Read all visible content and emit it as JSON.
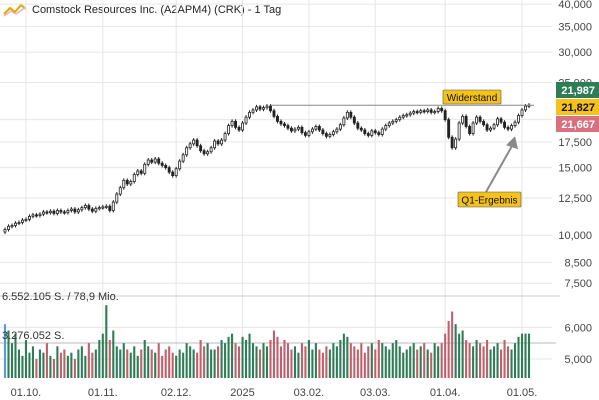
{
  "title": "Comstock Resources Inc. (A2APM4) (CRK) - 1 Tag",
  "colors": {
    "up": "#2e7d57",
    "down": "#c0606c",
    "grid": "#e6e6e6",
    "axis_text": "#444444",
    "annotation_bg": "#f4c21a",
    "tag_high": "#2e7d57",
    "tag_last": "#f4c21a",
    "tag_low": "#d9707d",
    "volume_first": "#5b9bd5"
  },
  "annotations": {
    "resistance_label": "Widerstand",
    "earnings_label": "Q1-Ergebnis"
  },
  "price_tags": {
    "high": "21,987",
    "last": "21,827",
    "low": "21,667"
  },
  "volume_labels": {
    "top": "6.552.105 S. / 78,9 Mio.",
    "mid": "3.276.052 S."
  },
  "chart_data": {
    "type": "candlestick",
    "y_scale": "log",
    "ylim": [
      7.2,
      41
    ],
    "y_ticks": [
      {
        "value": 40,
        "label": "40,000"
      },
      {
        "value": 35,
        "label": "35,000"
      },
      {
        "value": 30,
        "label": "30,000"
      },
      {
        "value": 25,
        "label": "25,000"
      },
      {
        "value": 20,
        "label": "20,000"
      },
      {
        "value": 17.5,
        "label": "17,500"
      },
      {
        "value": 15,
        "label": "15,000"
      },
      {
        "value": 12.5,
        "label": "12,500"
      },
      {
        "value": 10,
        "label": "10,000"
      },
      {
        "value": 8.5,
        "label": "8,500"
      },
      {
        "value": 7.5,
        "label": "7,500"
      }
    ],
    "volume_ticks": [
      {
        "value": 6000000,
        "label": "6,000"
      },
      {
        "value": 5000000,
        "label": "5,000"
      }
    ],
    "x_ticks": [
      "01.10.",
      "01.11.",
      "02.12.",
      "2025",
      "03.02.",
      "03.03.",
      "01.04.",
      "01.05."
    ],
    "x_tick_index": [
      6,
      28,
      49,
      68,
      87,
      106,
      126,
      148
    ],
    "resistance_level": 21.8,
    "resistance_range": [
      76,
      153
    ],
    "earnings_index": 146,
    "close": [
      10.35,
      10.55,
      10.6,
      10.75,
      10.8,
      10.95,
      11.0,
      11.2,
      11.3,
      11.25,
      11.35,
      11.5,
      11.45,
      11.55,
      11.4,
      11.6,
      11.5,
      11.45,
      11.6,
      11.7,
      11.5,
      11.65,
      11.8,
      11.95,
      11.7,
      11.55,
      11.75,
      11.8,
      11.85,
      11.9,
      11.6,
      12.2,
      12.8,
      13.3,
      13.9,
      13.6,
      13.8,
      14.4,
      14.7,
      14.5,
      15.3,
      15.7,
      15.5,
      15.8,
      15.4,
      15.2,
      15.0,
      14.6,
      14.3,
      14.9,
      15.6,
      16.2,
      16.9,
      17.3,
      17.7,
      17.1,
      16.6,
      16.3,
      16.5,
      16.9,
      17.6,
      17.3,
      17.7,
      18.4,
      19.3,
      19.8,
      19.1,
      18.8,
      19.6,
      20.3,
      20.9,
      21.2,
      21.6,
      21.3,
      21.5,
      21.7,
      21.1,
      20.4,
      19.8,
      19.5,
      19.3,
      19.0,
      18.7,
      18.9,
      19.1,
      18.5,
      18.2,
      18.6,
      18.9,
      19.2,
      18.8,
      18.4,
      18.1,
      18.3,
      18.6,
      18.9,
      19.4,
      20.2,
      20.9,
      20.3,
      19.6,
      19.0,
      18.8,
      18.4,
      18.2,
      18.7,
      18.5,
      18.3,
      18.9,
      19.3,
      19.6,
      19.8,
      20.0,
      20.3,
      20.5,
      20.6,
      20.8,
      21.0,
      20.9,
      21.1,
      21.0,
      21.2,
      20.9,
      21.0,
      21.4,
      21.1,
      20.0,
      18.0,
      16.9,
      17.8,
      19.6,
      20.4,
      19.2,
      18.4,
      19.6,
      20.3,
      19.8,
      19.4,
      18.8,
      19.0,
      19.4,
      20.1,
      19.7,
      19.1,
      18.9,
      19.3,
      19.7,
      20.5,
      21.2,
      21.7,
      21.827
    ],
    "volume": [
      6100000,
      5900000,
      5500000,
      5800000,
      5300000,
      5100000,
      5600000,
      5200000,
      5400000,
      5000000,
      5300000,
      5200000,
      5500000,
      5100000,
      5000000,
      5400000,
      5200000,
      5300000,
      5100000,
      5200000,
      5000000,
      5300000,
      5400000,
      5100000,
      5500000,
      5200000,
      5300000,
      5600000,
      5800000,
      6700000,
      5600000,
      5900000,
      5400000,
      5300000,
      5500000,
      5300000,
      5200000,
      5400000,
      5100000,
      5300000,
      5600000,
      5400000,
      5300000,
      5200000,
      5500000,
      5100000,
      5300000,
      5400000,
      5200000,
      5100000,
      5300000,
      5200000,
      5500000,
      5400000,
      5300000,
      5200000,
      5600000,
      5400000,
      5500000,
      5300000,
      5300000,
      5400000,
      5600000,
      5500000,
      5700000,
      5800000,
      5500000,
      5400000,
      5700000,
      5600000,
      5800000,
      5500000,
      5400000,
      5300000,
      5500000,
      5400000,
      5600000,
      5900000,
      5700000,
      5400000,
      5600000,
      5500000,
      5300000,
      5400000,
      5200000,
      5500000,
      5400000,
      5600000,
      5300000,
      5500000,
      5300000,
      5200000,
      5400000,
      5300000,
      5500000,
      5400000,
      5600000,
      5800000,
      5700000,
      5500000,
      5400000,
      5300000,
      5500000,
      5200000,
      5400000,
      5500000,
      5300000,
      5600000,
      5500000,
      5400000,
      5300000,
      5500000,
      5600000,
      5400000,
      5200000,
      5300000,
      5400000,
      5500000,
      5300000,
      5400000,
      5500000,
      5300000,
      5200000,
      5500000,
      5400000,
      5500000,
      5800000,
      6200000,
      6500000,
      6100000,
      5800000,
      5900000,
      5600000,
      5500000,
      5400000,
      5600000,
      5500000,
      5400000,
      5600000,
      5300000,
      5400000,
      5500000,
      5300000,
      5600000,
      5400000,
      5300000,
      5500000,
      5700000,
      5800000,
      5800000,
      5800000
    ]
  }
}
